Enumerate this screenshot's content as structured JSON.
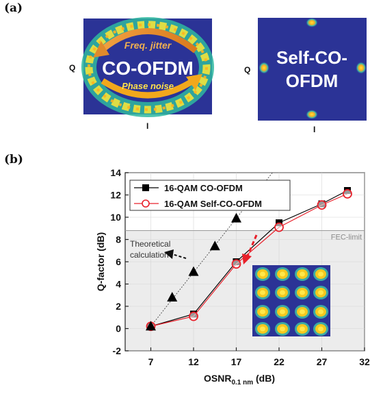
{
  "panel_a": {
    "label": "(a)",
    "left_constellation": {
      "title": "CO-OFDM",
      "arrow_top_label": "Freq. jitter",
      "arrow_bottom_label": "Phase noise",
      "q_label": "Q",
      "i_label": "I"
    },
    "right_constellation": {
      "title_line1": "Self-CO-",
      "title_line2": "OFDM",
      "q_label": "Q",
      "i_label": "I"
    }
  },
  "panel_b": {
    "label": "(b)",
    "fec_label": "FEC-limit",
    "theory_label_line1": "Theoretical",
    "theory_label_line2": "calculation",
    "x_label_main": "OSNR",
    "x_label_sub": "0.1 nm",
    "x_label_unit": " (dB)"
  },
  "chart_data": {
    "type": "line",
    "xlabel": "OSNR0.1 nm (dB)",
    "ylabel": "Q-factor (dB)",
    "xlim": [
      4,
      32
    ],
    "ylim": [
      -2,
      14
    ],
    "xticks": [
      7,
      12,
      17,
      22,
      27,
      32
    ],
    "yticks": [
      -2,
      0,
      2,
      4,
      6,
      8,
      10,
      12,
      14
    ],
    "legend_position": "top-left",
    "fec_limit": 8.8,
    "series": [
      {
        "name": "16-QAM CO-OFDM",
        "color": "#000000",
        "marker": "filled-square",
        "x": [
          7,
          12,
          17,
          22,
          27,
          30
        ],
        "y": [
          0.2,
          1.3,
          6.0,
          9.5,
          11.2,
          12.4
        ]
      },
      {
        "name": "16-QAM Self-CO-OFDM",
        "color": "#e8202a",
        "marker": "open-circle",
        "x": [
          7,
          12,
          17,
          22,
          27,
          30
        ],
        "y": [
          0.2,
          1.1,
          5.8,
          9.1,
          11.1,
          12.1
        ]
      },
      {
        "name": "",
        "color": "#000000",
        "marker": "filled-triangle",
        "x": [
          7,
          9.5,
          12,
          14.5,
          17
        ],
        "y": [
          0.2,
          2.8,
          5.1,
          7.4,
          9.9
        ]
      }
    ]
  }
}
